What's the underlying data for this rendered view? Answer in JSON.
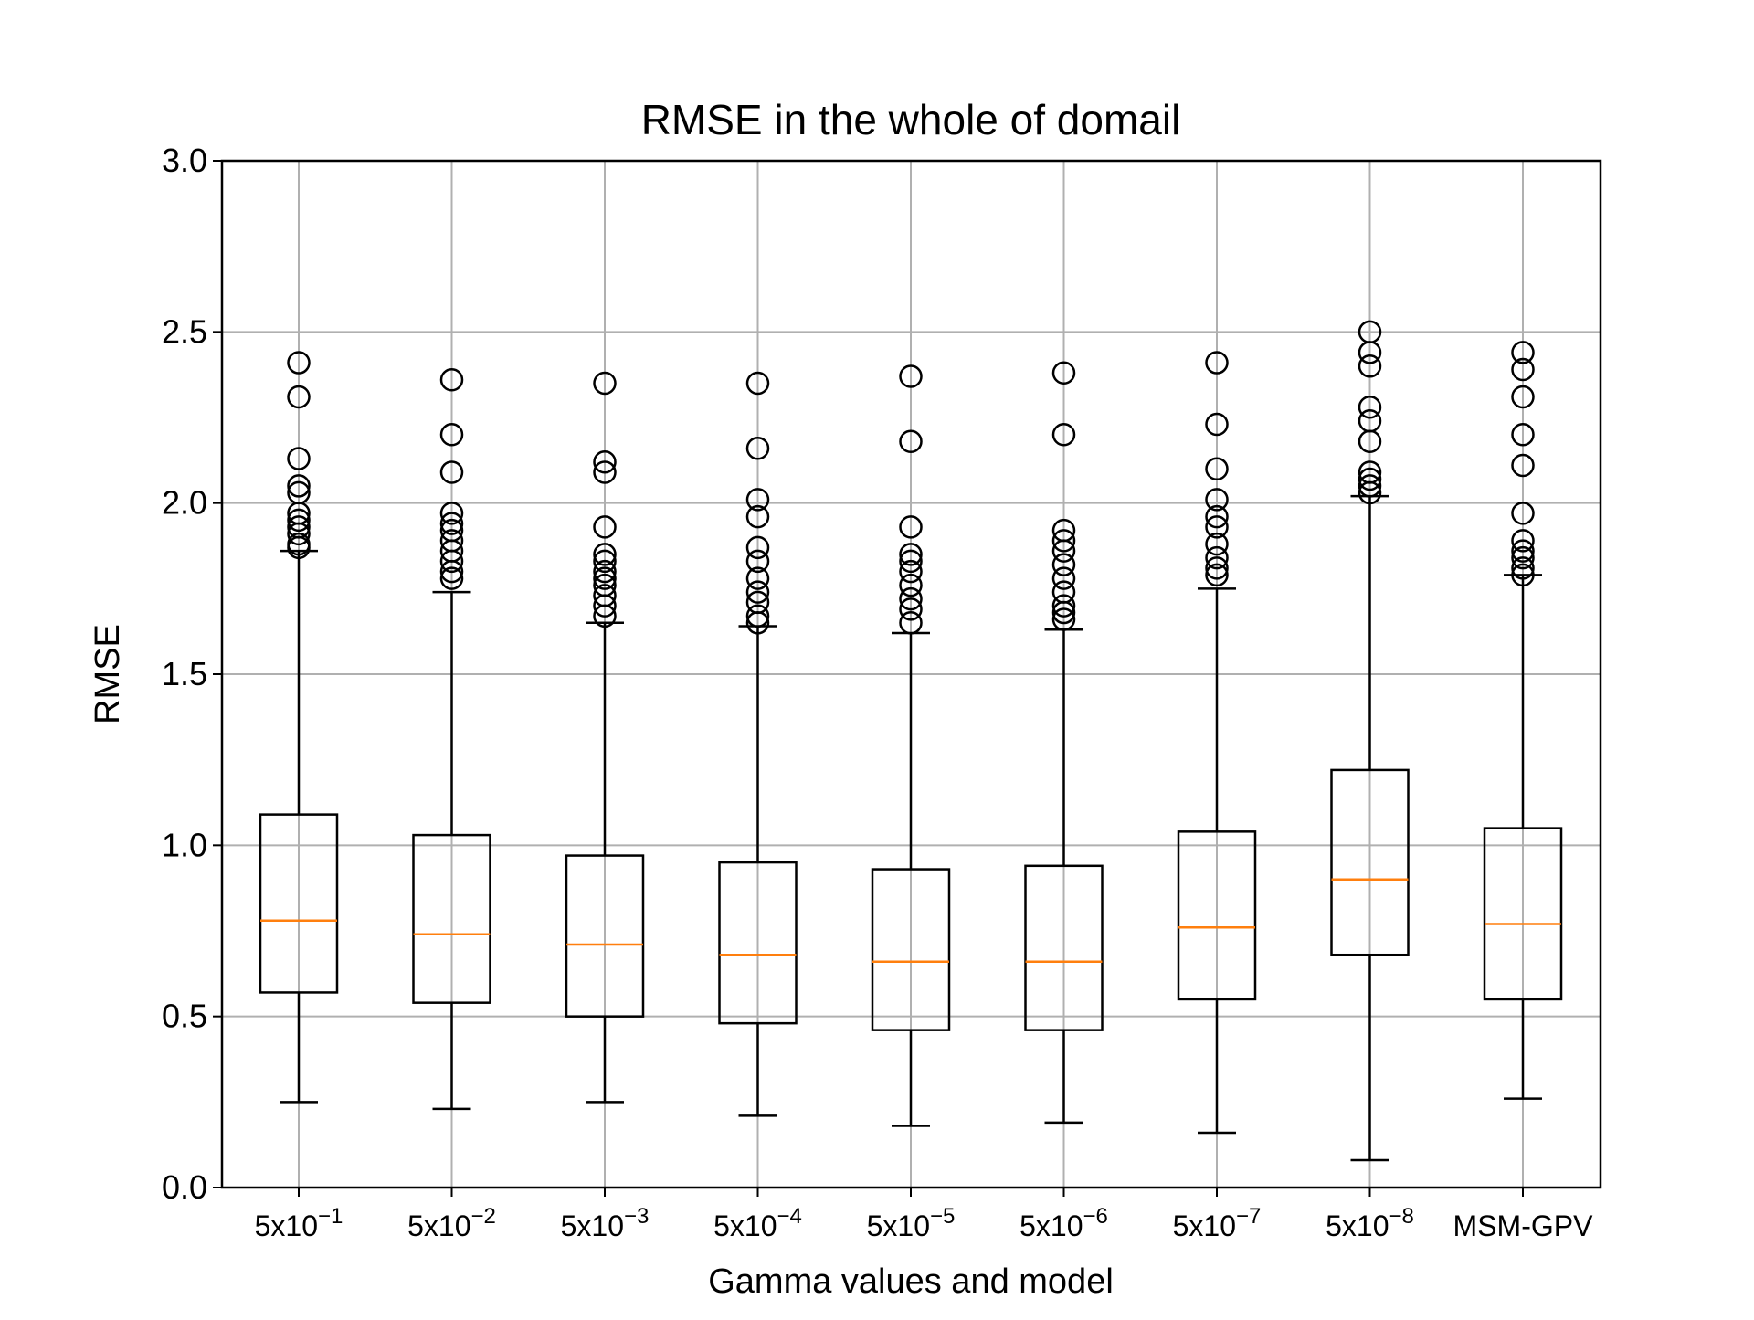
{
  "chart_data": {
    "type": "box",
    "title": "RMSE in the whole of domail",
    "xlabel": "Gamma values and model",
    "ylabel": "RMSE",
    "ylim": [
      0,
      3
    ],
    "yticks": [
      "0.0",
      "0.5",
      "1.0",
      "1.5",
      "2.0",
      "2.5",
      "3.0"
    ],
    "ytick_values": [
      0,
      0.5,
      1.0,
      1.5,
      2.0,
      2.5,
      3.0
    ],
    "grid": true,
    "categories": [
      {
        "label": "5x10",
        "exp": "−1"
      },
      {
        "label": "5x10",
        "exp": "−2"
      },
      {
        "label": "5x10",
        "exp": "−3"
      },
      {
        "label": "5x10",
        "exp": "−4"
      },
      {
        "label": "5x10",
        "exp": "−5"
      },
      {
        "label": "5x10",
        "exp": "−6"
      },
      {
        "label": "5x10",
        "exp": "−7"
      },
      {
        "label": "5x10",
        "exp": "−8"
      },
      {
        "label": "MSM-GPV",
        "exp": ""
      }
    ],
    "boxes": [
      {
        "whislo": 0.25,
        "q1": 0.57,
        "median": 0.78,
        "q3": 1.09,
        "whishi": 1.86,
        "fliers": [
          1.87,
          1.88,
          1.91,
          1.93,
          1.95,
          1.97,
          2.03,
          2.05,
          2.13,
          2.31,
          2.41
        ]
      },
      {
        "whislo": 0.23,
        "q1": 0.54,
        "median": 0.74,
        "q3": 1.03,
        "whishi": 1.74,
        "fliers": [
          1.78,
          1.8,
          1.83,
          1.86,
          1.89,
          1.92,
          1.94,
          1.97,
          2.09,
          2.2,
          2.36
        ]
      },
      {
        "whislo": 0.25,
        "q1": 0.5,
        "median": 0.71,
        "q3": 0.97,
        "whishi": 1.65,
        "fliers": [
          1.67,
          1.7,
          1.73,
          1.76,
          1.78,
          1.8,
          1.83,
          1.85,
          1.93,
          2.09,
          2.12,
          2.35
        ]
      },
      {
        "whislo": 0.21,
        "q1": 0.48,
        "median": 0.68,
        "q3": 0.95,
        "whishi": 1.64,
        "fliers": [
          1.65,
          1.67,
          1.71,
          1.74,
          1.78,
          1.83,
          1.87,
          1.96,
          2.01,
          2.16,
          2.35
        ]
      },
      {
        "whislo": 0.18,
        "q1": 0.46,
        "median": 0.66,
        "q3": 0.93,
        "whishi": 1.62,
        "fliers": [
          1.65,
          1.69,
          1.72,
          1.76,
          1.8,
          1.83,
          1.85,
          1.93,
          2.18,
          2.37
        ]
      },
      {
        "whislo": 0.19,
        "q1": 0.46,
        "median": 0.66,
        "q3": 0.94,
        "whishi": 1.63,
        "fliers": [
          1.66,
          1.68,
          1.7,
          1.74,
          1.78,
          1.82,
          1.86,
          1.89,
          1.92,
          2.2,
          2.38
        ]
      },
      {
        "whislo": 0.16,
        "q1": 0.55,
        "median": 0.76,
        "q3": 1.04,
        "whishi": 1.75,
        "fliers": [
          1.79,
          1.81,
          1.84,
          1.88,
          1.93,
          1.96,
          2.01,
          2.1,
          2.23,
          2.41
        ]
      },
      {
        "whislo": 0.08,
        "q1": 0.68,
        "median": 0.9,
        "q3": 1.22,
        "whishi": 2.02,
        "fliers": [
          2.03,
          2.05,
          2.07,
          2.09,
          2.18,
          2.24,
          2.28,
          2.4,
          2.44,
          2.5
        ]
      },
      {
        "whislo": 0.26,
        "q1": 0.55,
        "median": 0.77,
        "q3": 1.05,
        "whishi": 1.79,
        "fliers": [
          1.79,
          1.81,
          1.84,
          1.86,
          1.89,
          1.97,
          2.11,
          2.2,
          2.31,
          2.39,
          2.44
        ]
      }
    ]
  },
  "colors": {
    "box": "#000000",
    "median": "#ff7f0e",
    "grid": "#b0b0b0",
    "flier": "#000000"
  }
}
